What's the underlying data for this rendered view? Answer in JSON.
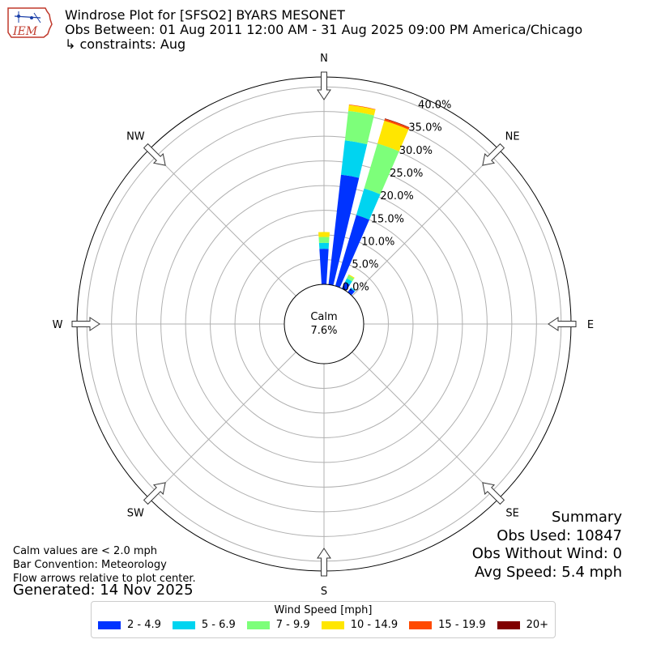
{
  "logo": {
    "text": "IEM"
  },
  "header": {
    "title": "Windrose Plot for [SFSO2] BYARS MESONET",
    "obs_between": "Obs Between: 01 Aug 2011 12:00 AM - 31 Aug 2025 09:00 PM America/Chicago",
    "constraints": "↳ constraints: Aug"
  },
  "chart_data": {
    "type": "windrose",
    "directions": [
      "N",
      "NE",
      "E",
      "SE",
      "S",
      "SW",
      "W",
      "NW"
    ],
    "radial_tick_labels": [
      "0.0%",
      "5.0%",
      "10.0%",
      "15.0%",
      "20.0%",
      "25.0%",
      "30.0%",
      "35.0%",
      "40.0%"
    ],
    "radial_max": 42,
    "calm": {
      "label": "Calm",
      "value": "7.6%",
      "percent": 7.6
    },
    "legend_title": "Wind Speed [mph]",
    "bins": [
      {
        "label": "2 - 4.9",
        "color": "#0033ff"
      },
      {
        "label": "5 - 6.9",
        "color": "#00d4f0"
      },
      {
        "label": "7 - 9.9",
        "color": "#7dff7a"
      },
      {
        "label": "10 - 14.9",
        "color": "#ffe600"
      },
      {
        "label": "15 - 19.9",
        "color": "#ff4a00"
      },
      {
        "label": "20+",
        "color": "#800000"
      }
    ],
    "sectors": [
      {
        "direction_deg": 0,
        "values": [
          7.2,
          1.2,
          1.2,
          1.0,
          0.0,
          0.0
        ]
      },
      {
        "direction_deg": 10,
        "values": [
          22.4,
          7.0,
          6.0,
          1.2,
          0.1,
          0.0
        ]
      },
      {
        "direction_deg": 20,
        "values": [
          15.0,
          5.6,
          9.5,
          4.8,
          0.4,
          0.1
        ]
      },
      {
        "direction_deg": 30,
        "values": [
          1.5,
          0.8,
          0.7,
          0.2,
          0.0,
          0.0
        ]
      },
      {
        "direction_deg": 40,
        "values": [
          1.0,
          0.2,
          0.0,
          0.0,
          0.0,
          0.0
        ]
      }
    ]
  },
  "notes": {
    "line1": "Calm values are < 2.0 mph",
    "line2": "Bar Convention: Meteorology",
    "line3": "Flow arrows relative to plot center."
  },
  "generated": "Generated: 14 Nov 2025",
  "summary": {
    "title": "Summary",
    "obs_used": "Obs Used: 10847",
    "obs_without_wind": "Obs Without Wind: 0",
    "avg_speed": "Avg Speed: 5.4 mph"
  }
}
